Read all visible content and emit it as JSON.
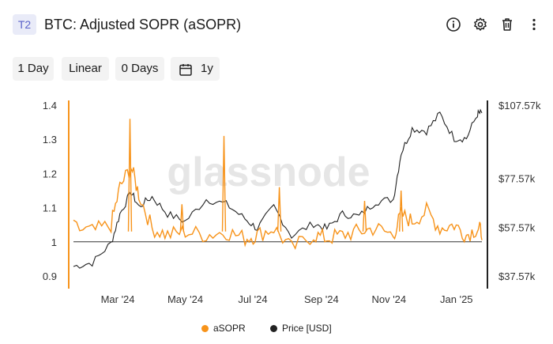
{
  "header": {
    "tag": "T2",
    "title": "BTC: Adjusted SOPR (aSOPR)",
    "icons": [
      "info-icon",
      "gear-icon",
      "trash-icon",
      "more-vertical-icon"
    ]
  },
  "toolbar": {
    "resolution": "1 Day",
    "scale": "Linear",
    "sma": "0 Days",
    "range": "1y"
  },
  "colors": {
    "asopr": "#f7931a",
    "price": "#222222",
    "axis_left": "#f7931a",
    "axis_right": "#222222",
    "tag_bg": "#e9ebf8",
    "tag_text": "#5b63c9"
  },
  "watermark": "glassnode",
  "chart_data": {
    "type": "line",
    "title": "",
    "x": [
      "2024-01-21",
      "2024-02-07",
      "2024-02-24",
      "2024-03-03",
      "2024-03-13",
      "2024-03-20",
      "2024-04-01",
      "2024-04-15",
      "2024-05-01",
      "2024-05-20",
      "2024-06-07",
      "2024-06-24",
      "2024-07-05",
      "2024-07-20",
      "2024-08-05",
      "2024-08-25",
      "2024-09-06",
      "2024-09-20",
      "2024-10-05",
      "2024-10-20",
      "2024-11-05",
      "2024-11-12",
      "2024-11-22",
      "2024-12-05",
      "2024-12-17",
      "2024-12-30",
      "2025-01-10",
      "2025-01-20",
      "2025-01-24"
    ],
    "x_ticks": [
      "Mar '24",
      "May '24",
      "Jul '24",
      "Sep '24",
      "Nov '24",
      "Jan '25"
    ],
    "y_left": {
      "ticks": [
        "0.9",
        "1",
        "1.1",
        "1.2",
        "1.3",
        "1.4"
      ],
      "range": [
        0.9,
        1.4
      ]
    },
    "y_right": {
      "ticks": [
        "$37.57k",
        "$57.57k",
        "$77.57k",
        "$107.57k"
      ],
      "range": [
        37570,
        107570
      ]
    },
    "series": [
      {
        "name": "aSOPR",
        "axis": "left",
        "values": [
          1.04,
          1.03,
          1.05,
          1.16,
          1.22,
          1.14,
          1.04,
          1.02,
          1.03,
          1.02,
          1.03,
          1.01,
          1.02,
          1.04,
          0.98,
          1.02,
          1.01,
          1.02,
          1.03,
          1.04,
          1.02,
          1.08,
          1.06,
          1.09,
          1.04,
          1.05,
          1.02,
          1.04,
          1.03
        ]
      },
      {
        "name": "Price [USD]",
        "axis": "right",
        "values": [
          41500,
          43000,
          51000,
          63000,
          72000,
          66000,
          70000,
          63000,
          60000,
          69000,
          67000,
          61000,
          57000,
          66000,
          54000,
          59000,
          57000,
          63000,
          62000,
          68000,
          69000,
          88000,
          98000,
          97000,
          104000,
          94000,
          94000,
          104000,
          104500
        ]
      }
    ],
    "spikes": [
      {
        "x": "2024-03-12",
        "value": 1.36
      },
      {
        "x": "2024-06-05",
        "value": 1.31
      },
      {
        "x": "2024-07-25",
        "value": 1.16
      },
      {
        "x": "2024-04-28",
        "value": 1.11
      },
      {
        "x": "2024-10-10",
        "value": 1.12
      },
      {
        "x": "2024-11-12",
        "value": 1.15
      }
    ],
    "reference_line": 1,
    "grid": false,
    "legend_position": "bottom"
  }
}
